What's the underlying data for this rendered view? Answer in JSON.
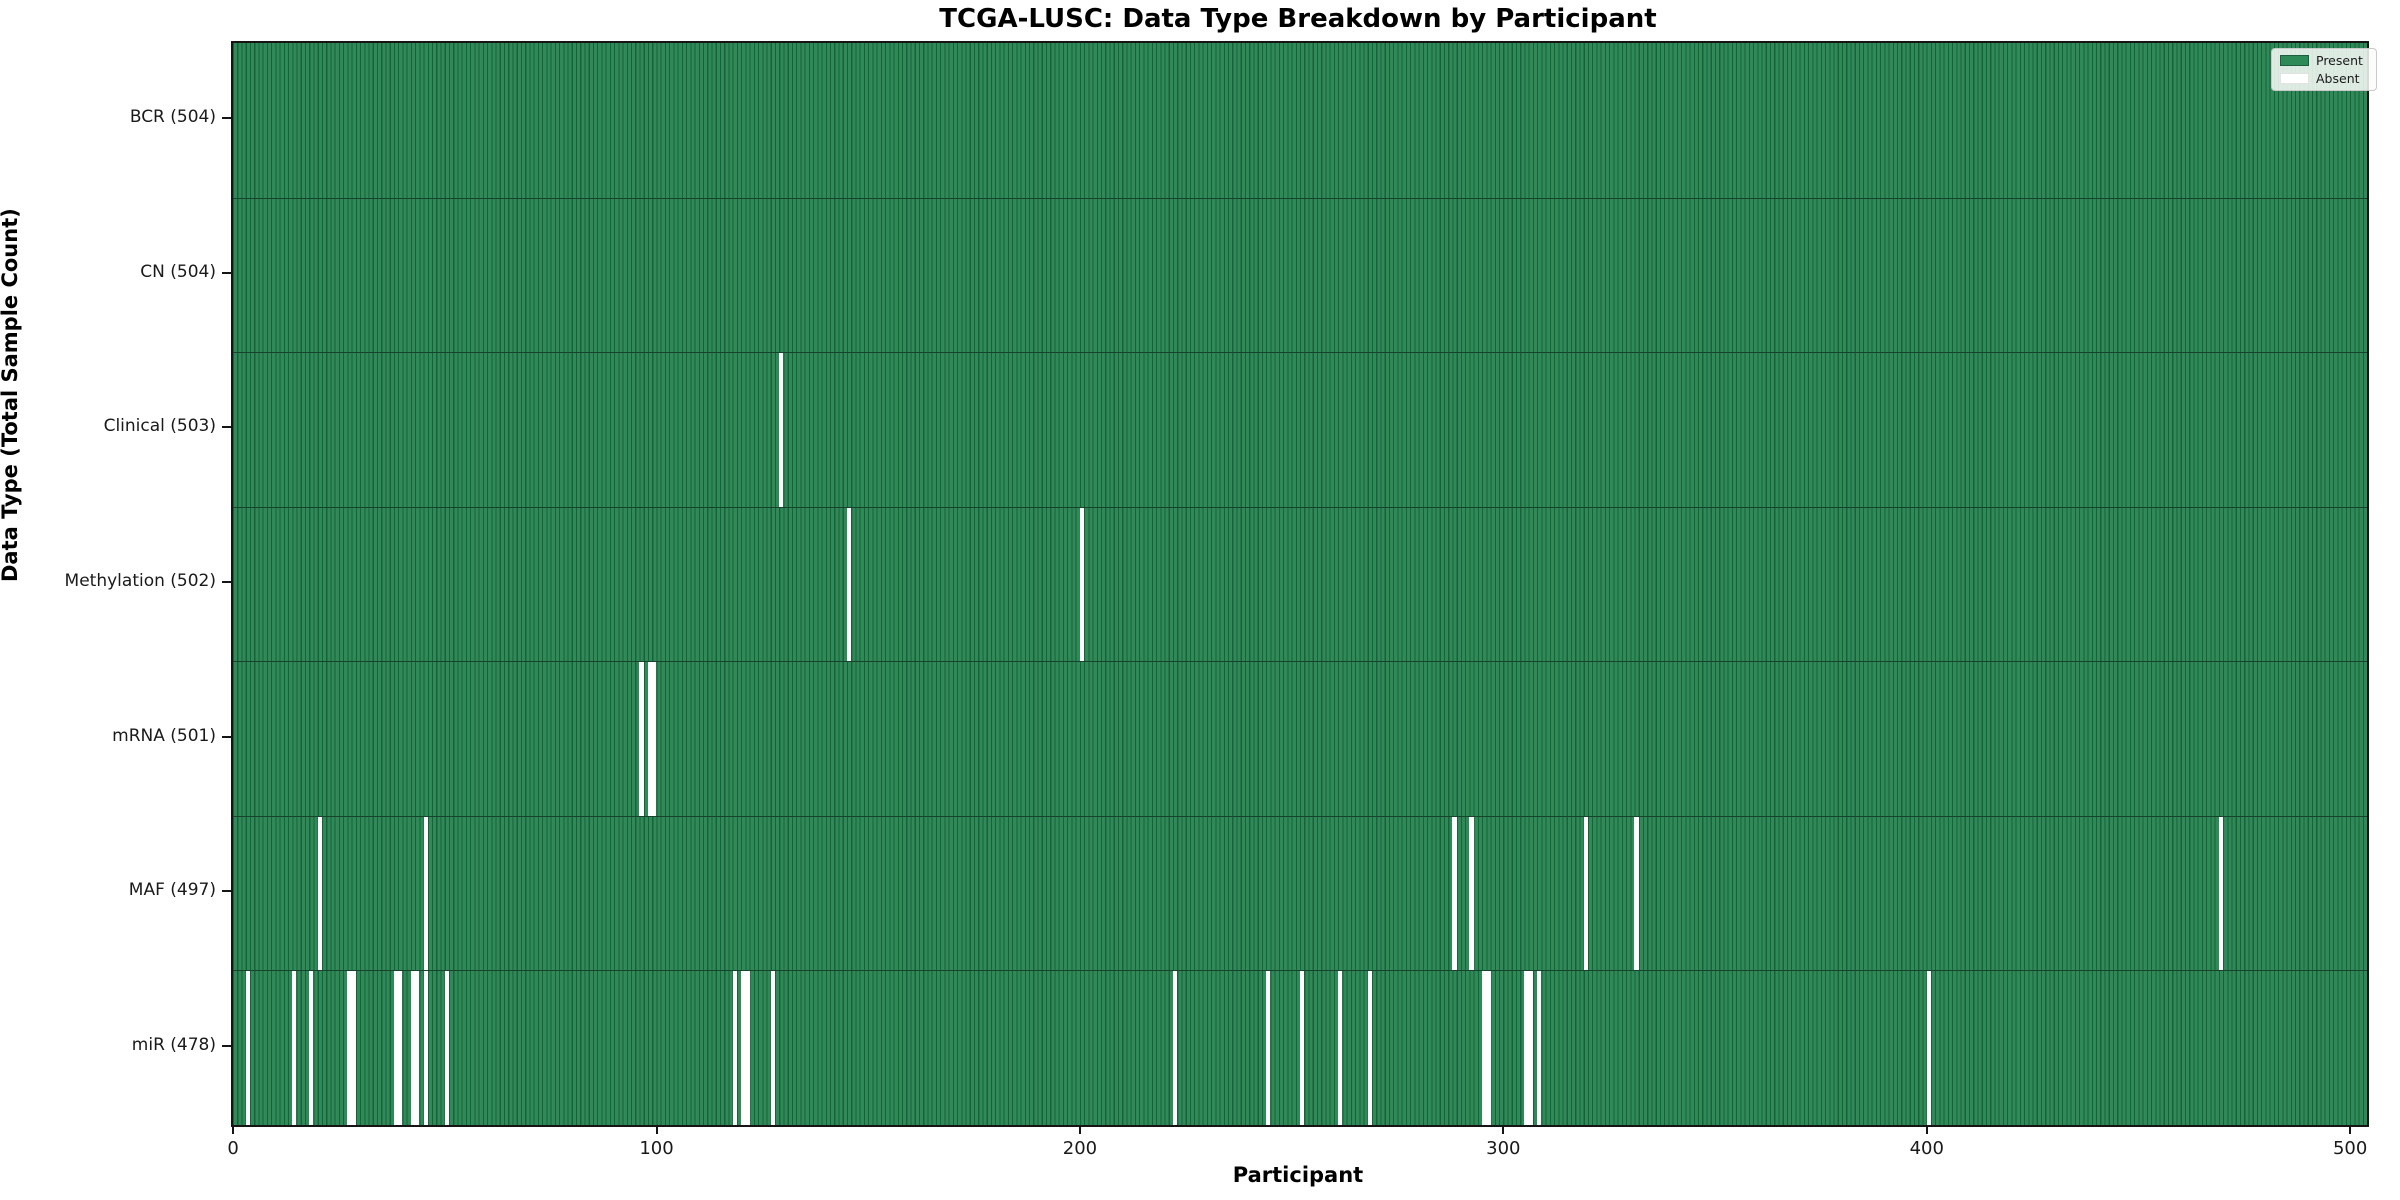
{
  "title": "TCGA-LUSC: Data Type Breakdown by Participant",
  "x_axis_label": "Participant",
  "y_axis_label": "Data Type (Total Sample Count)",
  "legend": {
    "present_label": "Present",
    "absent_label": "Absent"
  },
  "colors": {
    "present_fill": "#2e8b57",
    "present_edge": "#1d5f3d",
    "absent_fill": "#ffffff",
    "axis_color": "#151515"
  },
  "total_participants": 504,
  "chart_data": {
    "type": "heatmap",
    "title": "TCGA-LUSC: Data Type Breakdown by Participant",
    "xlabel": "Participant",
    "ylabel": "Data Type (Total Sample Count)",
    "x_ticks": [
      0,
      100,
      200,
      300,
      400,
      500
    ],
    "x_range": [
      0,
      504
    ],
    "legend_entries": [
      "Present",
      "Absent"
    ],
    "legend_position": "upper right",
    "grid": false,
    "rows": [
      {
        "name": "BCR",
        "label": "BCR (504)",
        "present_count": 504,
        "absent_participants": []
      },
      {
        "name": "CN",
        "label": "CN (504)",
        "present_count": 504,
        "absent_participants": []
      },
      {
        "name": "Clinical",
        "label": "Clinical (503)",
        "present_count": 503,
        "absent_participants": [
          129
        ]
      },
      {
        "name": "Methylation",
        "label": "Methylation (502)",
        "present_count": 502,
        "absent_participants": [
          145,
          200
        ]
      },
      {
        "name": "mRNA",
        "label": "mRNA (501)",
        "present_count": 501,
        "absent_participants": [
          96,
          98,
          99
        ]
      },
      {
        "name": "MAF",
        "label": "MAF (497)",
        "present_count": 497,
        "absent_participants": [
          20,
          45,
          288,
          292,
          319,
          331,
          469
        ]
      },
      {
        "name": "miR",
        "label": "miR (478)",
        "present_count": 478,
        "absent_participants": [
          3,
          14,
          18,
          27,
          28,
          38,
          39,
          42,
          43,
          45,
          50,
          118,
          120,
          121,
          127,
          222,
          244,
          252,
          261,
          268,
          295,
          296,
          305,
          306,
          308,
          400
        ]
      }
    ]
  }
}
